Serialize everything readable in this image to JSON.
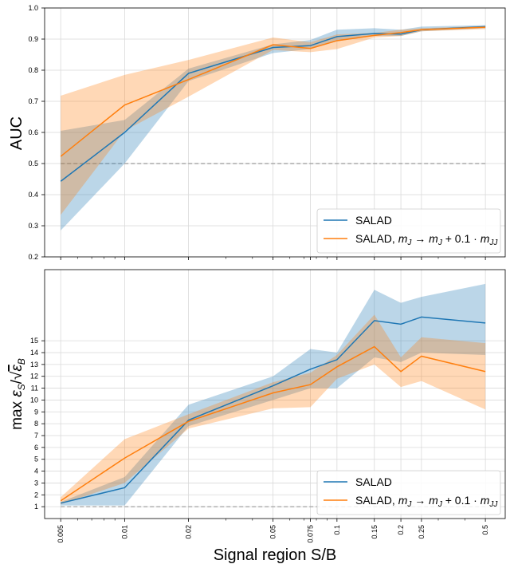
{
  "chart_data": [
    {
      "type": "line",
      "panel": "top",
      "ylabel": "AUC",
      "xlabel": "",
      "x_scale": "log",
      "x": [
        0.005,
        0.01,
        0.02,
        0.05,
        0.075,
        0.1,
        0.15,
        0.2,
        0.25,
        0.5
      ],
      "xlim": [
        0.0042,
        0.62
      ],
      "ylim": [
        0.2,
        1.0
      ],
      "yticks": [
        "0.2",
        "0.3",
        "0.4",
        "0.5",
        "0.6",
        "0.7",
        "0.8",
        "0.9",
        "1.0"
      ],
      "ytick_values": [
        0.2,
        0.3,
        0.4,
        0.5,
        0.6,
        0.7,
        0.8,
        0.9,
        1.0
      ],
      "grid": true,
      "legend_position": "lower-right",
      "baseline": {
        "value": 0.5,
        "color": "#aaaaaa",
        "style": "dashed"
      },
      "series": [
        {
          "name": "SALAD",
          "color": "#1f77b4",
          "values": [
            0.443,
            0.6,
            0.79,
            0.873,
            0.879,
            0.908,
            0.918,
            0.916,
            0.93,
            0.94
          ],
          "lower": [
            0.285,
            0.5,
            0.765,
            0.855,
            0.868,
            0.893,
            0.91,
            0.91,
            0.925,
            0.935
          ],
          "upper": [
            0.605,
            0.64,
            0.805,
            0.883,
            0.897,
            0.93,
            0.935,
            0.93,
            0.94,
            0.945
          ]
        },
        {
          "name": "SALAD, m_J → m_J + 0.1 · m_JJ",
          "color": "#ff7f0e",
          "values": [
            0.523,
            0.688,
            0.77,
            0.882,
            0.87,
            0.895,
            0.912,
            0.921,
            0.93,
            0.938
          ],
          "lower": [
            0.335,
            0.605,
            0.715,
            0.865,
            0.858,
            0.868,
            0.905,
            0.91,
            0.925,
            0.932
          ],
          "upper": [
            0.718,
            0.785,
            0.833,
            0.905,
            0.89,
            0.915,
            0.92,
            0.93,
            0.935,
            0.942
          ]
        }
      ]
    },
    {
      "type": "line",
      "panel": "bottom",
      "ylabel": "max ε_S/√ε_B",
      "xlabel": "Signal region S/B",
      "x_scale": "log",
      "x": [
        0.005,
        0.01,
        0.02,
        0.05,
        0.075,
        0.1,
        0.15,
        0.2,
        0.25,
        0.5
      ],
      "xticks": [
        "0.005",
        "0.01",
        "0.02",
        "0.05",
        "0.075",
        "0.1",
        "0.15",
        "0.2",
        "0.25",
        "0.5"
      ],
      "xlim": [
        0.0042,
        0.62
      ],
      "ylim": [
        0.0,
        21.0
      ],
      "yticks": [
        "1",
        "2",
        "3",
        "4",
        "5",
        "6",
        "7",
        "8",
        "9",
        "10",
        "11",
        "12",
        "13",
        "14",
        "15"
      ],
      "ytick_values": [
        1,
        2,
        3,
        4,
        5,
        6,
        7,
        8,
        9,
        10,
        11,
        12,
        13,
        14,
        15
      ],
      "grid": true,
      "legend_position": "lower-right",
      "baseline": {
        "value": 1.0,
        "color": "#aaaaaa",
        "style": "dashed"
      },
      "series": [
        {
          "name": "SALAD",
          "color": "#1f77b4",
          "values": [
            1.3,
            2.6,
            8.3,
            11.2,
            12.6,
            13.4,
            16.7,
            16.4,
            17.0,
            16.5
          ],
          "lower": [
            1.1,
            1.1,
            7.8,
            10.0,
            11.0,
            11.0,
            13.6,
            13.2,
            14.0,
            13.8
          ],
          "upper": [
            1.4,
            3.5,
            9.6,
            12.0,
            14.3,
            14.0,
            19.3,
            18.2,
            18.7,
            19.8
          ]
        },
        {
          "name": "SALAD, m_J → m_J + 0.1 · m_JJ",
          "color": "#ff7f0e",
          "values": [
            1.5,
            5.1,
            8.2,
            10.6,
            11.3,
            12.8,
            14.5,
            12.4,
            13.7,
            12.4
          ],
          "lower": [
            1.2,
            3.0,
            7.6,
            9.3,
            9.4,
            11.8,
            13.0,
            11.1,
            11.6,
            9.2
          ],
          "upper": [
            1.8,
            6.7,
            8.8,
            11.5,
            12.3,
            13.8,
            17.2,
            13.6,
            15.3,
            14.8
          ]
        }
      ]
    }
  ],
  "legend": {
    "entry1": "SALAD",
    "entry2_prefix": "SALAD, ",
    "entry2_math1": "m",
    "entry2_sub1": "J",
    "entry2_arrow": " → ",
    "entry2_math2": "m",
    "entry2_sub2": "J",
    "entry2_rest": " + 0.1 · ",
    "entry2_math3": "m",
    "entry2_sub3": "JJ"
  },
  "labels": {
    "top_ylabel": "AUC",
    "bottom_ylabel_prefix": "max ",
    "bottom_ylabel_eps1": "ε",
    "bottom_ylabel_sub1": "S",
    "bottom_ylabel_slash": "/",
    "bottom_ylabel_eps2": "ε",
    "bottom_ylabel_sub2": "B",
    "xlabel": "Signal region S/B"
  }
}
